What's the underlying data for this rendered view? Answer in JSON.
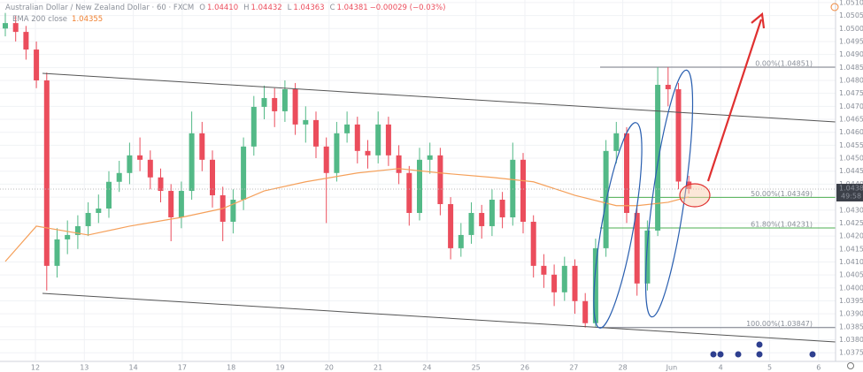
{
  "chart_data": {
    "type": "candlestick",
    "symbol": "Australian Dollar / New Zealand Dollar · 60 · FXCM",
    "quote": [
      "O",
      "1.04410",
      "H",
      "1.04432",
      "L",
      "1.04363",
      "C",
      "1.04381",
      "−0.00029 (−0.03%)"
    ],
    "indicator": {
      "name": "EMA 200 close",
      "value_label": "1.04355",
      "color": "#f5a05a",
      "x": [
        0,
        3,
        8,
        12,
        17,
        21,
        25,
        29,
        34,
        38,
        42,
        47,
        51,
        55,
        59,
        61,
        64,
        66
      ],
      "values": [
        1.04102,
        1.04238,
        1.04204,
        1.04238,
        1.04272,
        1.04306,
        1.04374,
        1.04409,
        1.04443,
        1.0446,
        1.04443,
        1.04426,
        1.04409,
        1.04357,
        1.04317,
        1.04317,
        1.0433,
        1.04351
      ]
    },
    "up_color": "#53b987",
    "down_color": "#eb4d5c",
    "candles": [
      [
        1.05,
        1.0506,
        1.0497,
        1.05021
      ],
      [
        1.05021,
        1.0505,
        1.0495,
        1.04987
      ],
      [
        1.04987,
        1.0501,
        1.0488,
        1.04919
      ],
      [
        1.04919,
        1.0495,
        1.0477,
        1.048
      ],
      [
        1.048,
        1.0483,
        1.0399,
        1.04085
      ],
      [
        1.04085,
        1.0423,
        1.0404,
        1.04187
      ],
      [
        1.04187,
        1.0426,
        1.0413,
        1.04204
      ],
      [
        1.04204,
        1.0428,
        1.0415,
        1.04238
      ],
      [
        1.04238,
        1.0433,
        1.042,
        1.04289
      ],
      [
        1.04289,
        1.0436,
        1.0425,
        1.04306
      ],
      [
        1.04306,
        1.0445,
        1.0427,
        1.04409
      ],
      [
        1.04409,
        1.0449,
        1.0437,
        1.04443
      ],
      [
        1.04443,
        1.0456,
        1.044,
        1.04511
      ],
      [
        1.04511,
        1.0458,
        1.0445,
        1.04494
      ],
      [
        1.04494,
        1.0453,
        1.0438,
        1.04426
      ],
      [
        1.04426,
        1.0446,
        1.0433,
        1.04374
      ],
      [
        1.04374,
        1.044,
        1.0418,
        1.04272
      ],
      [
        1.04272,
        1.0441,
        1.0423,
        1.04374
      ],
      [
        1.04374,
        1.0468,
        1.0434,
        1.04596
      ],
      [
        1.04596,
        1.0464,
        1.0445,
        1.04494
      ],
      [
        1.04494,
        1.0453,
        1.0431,
        1.04357
      ],
      [
        1.04357,
        1.0439,
        1.0418,
        1.04255
      ],
      [
        1.04255,
        1.0438,
        1.0421,
        1.0434
      ],
      [
        1.0434,
        1.0458,
        1.043,
        1.04545
      ],
      [
        1.04545,
        1.0474,
        1.0451,
        1.04698
      ],
      [
        1.04698,
        1.0478,
        1.0465,
        1.04732
      ],
      [
        1.04732,
        1.0477,
        1.0462,
        1.04681
      ],
      [
        1.04681,
        1.048,
        1.0464,
        1.04766
      ],
      [
        1.04766,
        1.0479,
        1.0459,
        1.0463
      ],
      [
        1.0463,
        1.047,
        1.0456,
        1.04647
      ],
      [
        1.04647,
        1.0468,
        1.045,
        1.04545
      ],
      [
        1.04545,
        1.0458,
        1.0425,
        1.04443
      ],
      [
        1.04443,
        1.0464,
        1.0441,
        1.04596
      ],
      [
        1.04596,
        1.0468,
        1.0456,
        1.0463
      ],
      [
        1.0463,
        1.0466,
        1.0448,
        1.04528
      ],
      [
        1.04528,
        1.0457,
        1.0446,
        1.04511
      ],
      [
        1.04511,
        1.0468,
        1.0448,
        1.0463
      ],
      [
        1.0463,
        1.0466,
        1.0447,
        1.04511
      ],
      [
        1.04511,
        1.0455,
        1.044,
        1.04443
      ],
      [
        1.04443,
        1.0447,
        1.0424,
        1.04289
      ],
      [
        1.04289,
        1.0454,
        1.0426,
        1.04494
      ],
      [
        1.04494,
        1.0456,
        1.0444,
        1.04511
      ],
      [
        1.04511,
        1.0454,
        1.0428,
        1.04323
      ],
      [
        1.04323,
        1.0435,
        1.0411,
        1.04153
      ],
      [
        1.04153,
        1.0425,
        1.0412,
        1.04204
      ],
      [
        1.04204,
        1.0433,
        1.0417,
        1.04289
      ],
      [
        1.04289,
        1.0432,
        1.0419,
        1.04238
      ],
      [
        1.04238,
        1.0438,
        1.042,
        1.0434
      ],
      [
        1.0434,
        1.0437,
        1.0423,
        1.04272
      ],
      [
        1.04272,
        1.0456,
        1.0424,
        1.04494
      ],
      [
        1.04494,
        1.0452,
        1.0421,
        1.04255
      ],
      [
        1.04255,
        1.0428,
        1.0404,
        1.04085
      ],
      [
        1.04085,
        1.0413,
        1.04,
        1.04051
      ],
      [
        1.04051,
        1.0409,
        1.0393,
        1.03983
      ],
      [
        1.03983,
        1.0412,
        1.0395,
        1.04085
      ],
      [
        1.04085,
        1.0411,
        1.039,
        1.03949
      ],
      [
        1.03949,
        1.0398,
        1.03847,
        1.03864
      ],
      [
        1.03864,
        1.0419,
        1.0385,
        1.04153
      ],
      [
        1.04153,
        1.0457,
        1.0412,
        1.04528
      ],
      [
        1.04528,
        1.0464,
        1.0448,
        1.04596
      ],
      [
        1.04596,
        1.0462,
        1.0425,
        1.04289
      ],
      [
        1.04289,
        1.0431,
        1.0397,
        1.04017
      ],
      [
        1.04017,
        1.0426,
        1.0399,
        1.04221
      ],
      [
        1.04221,
        1.04851,
        1.042,
        1.04783
      ],
      [
        1.04783,
        1.04851,
        1.047,
        1.04766
      ],
      [
        1.04766,
        1.0479,
        1.0438,
        1.0441
      ],
      [
        1.0441,
        1.04432,
        1.04363,
        1.04381
      ]
    ],
    "fib_levels": [
      {
        "label": "0.00%(1.04851)",
        "value": 1.04851,
        "color": "#787b86"
      },
      {
        "label": "50.00%(1.04349)",
        "value": 1.04349,
        "color": "#4caf50"
      },
      {
        "label": "61.80%(1.04231)",
        "value": 1.04231,
        "color": "#4caf50"
      },
      {
        "label": "100.00%(1.03847)",
        "value": 1.03847,
        "color": "#787b86"
      }
    ],
    "price_label": {
      "value": 1.04381,
      "label": "1.04381",
      "countdown": "49:58"
    },
    "categories": [
      "12",
      "13",
      "14",
      "17",
      "18",
      "19",
      "20",
      "21",
      "24",
      "25",
      "26",
      "27",
      "28",
      "Jun",
      "4",
      "5",
      "6"
    ],
    "ylim": [
      1.0372,
      1.0511
    ],
    "yticks": [
      {
        "value": 1.0375,
        "label": "1.03750"
      },
      {
        "value": 1.038,
        "label": "1.03800"
      },
      {
        "value": 1.0385,
        "label": "1.03850"
      },
      {
        "value": 1.039,
        "label": "1.03900"
      },
      {
        "value": 1.0395,
        "label": "1.03950"
      },
      {
        "value": 1.04,
        "label": "1.04000"
      },
      {
        "value": 1.0405,
        "label": "1.04050"
      },
      {
        "value": 1.041,
        "label": "1.04100"
      },
      {
        "value": 1.0415,
        "label": "1.04150"
      },
      {
        "value": 1.042,
        "label": "1.04200"
      },
      {
        "value": 1.0425,
        "label": "1.04250"
      },
      {
        "value": 1.043,
        "label": "1.04300"
      },
      {
        "value": 1.0435,
        "label": "1.04350"
      },
      {
        "value": 1.044,
        "label": "1.04400"
      },
      {
        "value": 1.0445,
        "label": "1.04450"
      },
      {
        "value": 1.045,
        "label": "1.04500"
      },
      {
        "value": 1.0455,
        "label": "1.04550"
      },
      {
        "value": 1.046,
        "label": "1.04600"
      },
      {
        "value": 1.0465,
        "label": "1.04650"
      },
      {
        "value": 1.047,
        "label": "1.04700"
      },
      {
        "value": 1.0475,
        "label": "1.04750"
      },
      {
        "value": 1.048,
        "label": "1.04800"
      },
      {
        "value": 1.0485,
        "label": "1.04850"
      },
      {
        "value": 1.049,
        "label": "1.04900"
      },
      {
        "value": 1.0495,
        "label": "1.04950"
      },
      {
        "value": 1.05,
        "label": "1.05000"
      },
      {
        "value": 1.0505,
        "label": "1.05050"
      },
      {
        "value": 1.051,
        "label": "1.05100"
      }
    ],
    "grid": true
  }
}
